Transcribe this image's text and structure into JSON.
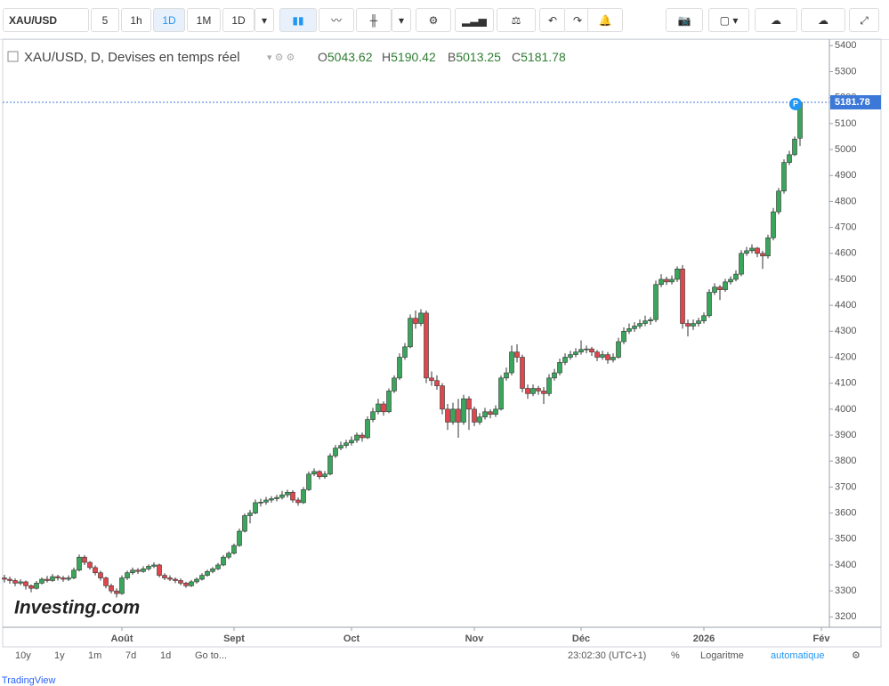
{
  "toolbar": {
    "symbol": "XAU/USD",
    "intervals": [
      "5",
      "1h",
      "1D",
      "1M",
      "1D"
    ]
  },
  "legend": {
    "title": "XAU/USD, D, Devises en temps réel",
    "prefixes": [
      "O",
      "H",
      "B",
      "C"
    ]
  },
  "watermark": "Investing.com",
  "bottom_bar": {
    "ranges": [
      "10y",
      "1y",
      "1m",
      "7d",
      "1d"
    ],
    "goto": "Go to...",
    "time": "23:02:30 (UTC+1)",
    "percent": "%",
    "log": "Logaritme",
    "auto": "automatique"
  },
  "footer": ": TradingView",
  "chart_data": {
    "type": "candlestick",
    "up_color": "#3aa65b",
    "down_color": "#e0474c",
    "ylim": [
      3160,
      5425
    ],
    "xlim": [
      -0.5,
      154.5
    ],
    "yticks": [
      3200,
      3300,
      3400,
      3500,
      3600,
      3700,
      3800,
      3900,
      4000,
      4100,
      4200,
      4300,
      4400,
      4500,
      4600,
      4700,
      4800,
      4900,
      5000,
      5100,
      5200,
      5300,
      5400
    ],
    "xticks": [
      {
        "value": 22,
        "label": "Août"
      },
      {
        "value": 43,
        "label": "Sept"
      },
      {
        "value": 65,
        "label": "Oct"
      },
      {
        "value": 88,
        "label": "Nov"
      },
      {
        "value": 108,
        "label": "Déc"
      },
      {
        "value": 131,
        "label": "2026"
      },
      {
        "value": 153,
        "label": "Fév"
      }
    ],
    "ohlc": [
      [
        3350,
        3362,
        3332,
        3345
      ],
      [
        3345,
        3355,
        3328,
        3340
      ],
      [
        3340,
        3348,
        3318,
        3330
      ],
      [
        3330,
        3345,
        3322,
        3335
      ],
      [
        3335,
        3340,
        3305,
        3320
      ],
      [
        3320,
        3325,
        3295,
        3310
      ],
      [
        3310,
        3338,
        3305,
        3330
      ],
      [
        3330,
        3352,
        3325,
        3345
      ],
      [
        3345,
        3358,
        3332,
        3340
      ],
      [
        3340,
        3365,
        3335,
        3355
      ],
      [
        3355,
        3362,
        3340,
        3350
      ],
      [
        3350,
        3358,
        3335,
        3345
      ],
      [
        3345,
        3360,
        3338,
        3350
      ],
      [
        3350,
        3390,
        3345,
        3380
      ],
      [
        3380,
        3440,
        3375,
        3430
      ],
      [
        3430,
        3438,
        3400,
        3410
      ],
      [
        3410,
        3415,
        3382,
        3390
      ],
      [
        3390,
        3398,
        3360,
        3370
      ],
      [
        3370,
        3378,
        3340,
        3350
      ],
      [
        3350,
        3355,
        3310,
        3320
      ],
      [
        3320,
        3328,
        3290,
        3300
      ],
      [
        3300,
        3310,
        3275,
        3290
      ],
      [
        3290,
        3360,
        3285,
        3350
      ],
      [
        3350,
        3378,
        3342,
        3370
      ],
      [
        3370,
        3390,
        3362,
        3380
      ],
      [
        3380,
        3388,
        3365,
        3375
      ],
      [
        3375,
        3395,
        3370,
        3385
      ],
      [
        3385,
        3402,
        3378,
        3395
      ],
      [
        3395,
        3410,
        3388,
        3400
      ],
      [
        3400,
        3405,
        3352,
        3360
      ],
      [
        3360,
        3368,
        3342,
        3350
      ],
      [
        3350,
        3360,
        3338,
        3345
      ],
      [
        3345,
        3352,
        3330,
        3340
      ],
      [
        3340,
        3348,
        3322,
        3330
      ],
      [
        3330,
        3335,
        3312,
        3320
      ],
      [
        3320,
        3342,
        3315,
        3335
      ],
      [
        3335,
        3352,
        3328,
        3345
      ],
      [
        3345,
        3368,
        3340,
        3360
      ],
      [
        3360,
        3382,
        3355,
        3375
      ],
      [
        3375,
        3392,
        3368,
        3385
      ],
      [
        3385,
        3408,
        3380,
        3400
      ],
      [
        3400,
        3438,
        3395,
        3430
      ],
      [
        3430,
        3452,
        3422,
        3445
      ],
      [
        3445,
        3482,
        3440,
        3475
      ],
      [
        3475,
        3540,
        3470,
        3530
      ],
      [
        3530,
        3598,
        3525,
        3590
      ],
      [
        3590,
        3612,
        3560,
        3600
      ],
      [
        3600,
        3652,
        3595,
        3640
      ],
      [
        3640,
        3655,
        3625,
        3642
      ],
      [
        3642,
        3662,
        3632,
        3650
      ],
      [
        3650,
        3665,
        3640,
        3655
      ],
      [
        3655,
        3670,
        3645,
        3660
      ],
      [
        3660,
        3685,
        3652,
        3670
      ],
      [
        3670,
        3690,
        3660,
        3680
      ],
      [
        3680,
        3688,
        3640,
        3650
      ],
      [
        3650,
        3660,
        3628,
        3640
      ],
      [
        3640,
        3700,
        3635,
        3690
      ],
      [
        3690,
        3760,
        3685,
        3750
      ],
      [
        3750,
        3772,
        3742,
        3760
      ],
      [
        3760,
        3765,
        3730,
        3740
      ],
      [
        3740,
        3762,
        3732,
        3750
      ],
      [
        3750,
        3830,
        3745,
        3820
      ],
      [
        3820,
        3862,
        3812,
        3850
      ],
      [
        3850,
        3875,
        3842,
        3860
      ],
      [
        3860,
        3882,
        3850,
        3870
      ],
      [
        3870,
        3895,
        3860,
        3880
      ],
      [
        3880,
        3910,
        3870,
        3900
      ],
      [
        3900,
        3910,
        3875,
        3890
      ],
      [
        3890,
        3972,
        3885,
        3960
      ],
      [
        3960,
        4005,
        3950,
        3990
      ],
      [
        3990,
        4040,
        3980,
        4020
      ],
      [
        4020,
        4030,
        3975,
        3990
      ],
      [
        3990,
        4080,
        3985,
        4070
      ],
      [
        4070,
        4130,
        4062,
        4120
      ],
      [
        4120,
        4215,
        4112,
        4200
      ],
      [
        4200,
        4255,
        4190,
        4240
      ],
      [
        4240,
        4365,
        4235,
        4350
      ],
      [
        4350,
        4380,
        4310,
        4330
      ],
      [
        4330,
        4385,
        4320,
        4370
      ],
      [
        4370,
        4380,
        4100,
        4120
      ],
      [
        4120,
        4145,
        4090,
        4110
      ],
      [
        4110,
        4130,
        4075,
        4090
      ],
      [
        4090,
        4100,
        3980,
        4000
      ],
      [
        4000,
        4020,
        3920,
        3950
      ],
      [
        3950,
        4025,
        3940,
        4000
      ],
      [
        4000,
        4040,
        3890,
        3950
      ],
      [
        3950,
        4055,
        3940,
        4040
      ],
      [
        4040,
        4050,
        3920,
        4000
      ],
      [
        4000,
        4010,
        3935,
        3950
      ],
      [
        3950,
        3985,
        3940,
        3970
      ],
      [
        3970,
        4005,
        3960,
        3990
      ],
      [
        3990,
        4000,
        3965,
        3980
      ],
      [
        3980,
        4015,
        3970,
        4000
      ],
      [
        4000,
        4130,
        3995,
        4120
      ],
      [
        4120,
        4160,
        4110,
        4140
      ],
      [
        4140,
        4245,
        4130,
        4220
      ],
      [
        4220,
        4250,
        4180,
        4200
      ],
      [
        4200,
        4210,
        4065,
        4080
      ],
      [
        4080,
        4095,
        4040,
        4060
      ],
      [
        4060,
        4095,
        4050,
        4080
      ],
      [
        4080,
        4090,
        4055,
        4070
      ],
      [
        4070,
        4085,
        4020,
        4060
      ],
      [
        4060,
        4135,
        4050,
        4120
      ],
      [
        4120,
        4155,
        4110,
        4140
      ],
      [
        4140,
        4195,
        4130,
        4180
      ],
      [
        4180,
        4215,
        4170,
        4200
      ],
      [
        4200,
        4225,
        4190,
        4210
      ],
      [
        4210,
        4235,
        4200,
        4220
      ],
      [
        4220,
        4265,
        4210,
        4230
      ],
      [
        4230,
        4245,
        4215,
        4232
      ],
      [
        4232,
        4240,
        4205,
        4220
      ],
      [
        4220,
        4228,
        4185,
        4200
      ],
      [
        4200,
        4225,
        4190,
        4210
      ],
      [
        4210,
        4220,
        4175,
        4190
      ],
      [
        4190,
        4215,
        4180,
        4200
      ],
      [
        4200,
        4275,
        4195,
        4260
      ],
      [
        4260,
        4315,
        4250,
        4300
      ],
      [
        4300,
        4330,
        4290,
        4310
      ],
      [
        4310,
        4335,
        4298,
        4320
      ],
      [
        4320,
        4345,
        4310,
        4330
      ],
      [
        4330,
        4360,
        4320,
        4340
      ],
      [
        4340,
        4355,
        4325,
        4345
      ],
      [
        4345,
        4495,
        4335,
        4480
      ],
      [
        4480,
        4520,
        4470,
        4500
      ],
      [
        4500,
        4510,
        4478,
        4490
      ],
      [
        4490,
        4515,
        4480,
        4500
      ],
      [
        4500,
        4550,
        4490,
        4540
      ],
      [
        4540,
        4555,
        4310,
        4330
      ],
      [
        4330,
        4345,
        4280,
        4320
      ],
      [
        4320,
        4345,
        4305,
        4330
      ],
      [
        4330,
        4352,
        4318,
        4340
      ],
      [
        4340,
        4372,
        4330,
        4360
      ],
      [
        4360,
        4462,
        4352,
        4450
      ],
      [
        4450,
        4485,
        4440,
        4470
      ],
      [
        4470,
        4478,
        4420,
        4460
      ],
      [
        4460,
        4502,
        4452,
        4490
      ],
      [
        4490,
        4512,
        4480,
        4500
      ],
      [
        4500,
        4535,
        4492,
        4520
      ],
      [
        4520,
        4612,
        4512,
        4600
      ],
      [
        4600,
        4625,
        4590,
        4610
      ],
      [
        4610,
        4635,
        4600,
        4620
      ],
      [
        4620,
        4625,
        4585,
        4600
      ],
      [
        4600,
        4610,
        4540,
        4590
      ],
      [
        4590,
        4672,
        4580,
        4660
      ],
      [
        4660,
        4775,
        4650,
        4760
      ],
      [
        4760,
        4852,
        4750,
        4840
      ],
      [
        4840,
        4962,
        4830,
        4950
      ],
      [
        4950,
        4995,
        4940,
        4980
      ],
      [
        4980,
        5050,
        4975,
        5040
      ],
      [
        5043.62,
        5190.42,
        5013.25,
        5181.78
      ]
    ]
  }
}
